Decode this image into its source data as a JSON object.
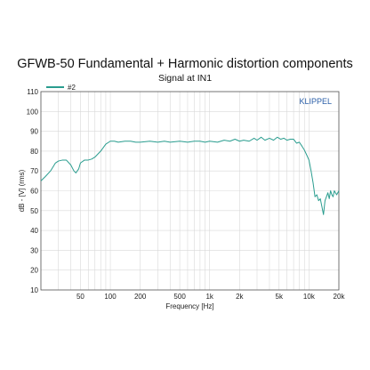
{
  "chart_data": {
    "type": "line",
    "title": "GFWB-50 Fundamental + Harmonic distortion components",
    "subtitle": "Signal at IN1",
    "xlabel": "Frequency [Hz]",
    "ylabel": "dB - [V] (rms)",
    "xscale": "log",
    "xlim": [
      20,
      20000
    ],
    "ylim": [
      10,
      110
    ],
    "grid": true,
    "legend_position": "top-left",
    "watermark": "KLIPPEL",
    "x_ticks": [
      50,
      100,
      200,
      500,
      1000,
      2000,
      5000,
      10000,
      20000
    ],
    "x_tick_labels": [
      "50",
      "100",
      "200",
      "500",
      "1k",
      "2k",
      "5k",
      "10k",
      "20k"
    ],
    "y_ticks": [
      10,
      20,
      30,
      40,
      50,
      60,
      70,
      80,
      90,
      100,
      110
    ],
    "y_tick_labels": [
      "10",
      "20",
      "30",
      "40",
      "50",
      "60",
      "70",
      "80",
      "90",
      "100",
      "110"
    ],
    "series": [
      {
        "name": "#2",
        "color": "#2a9d8f",
        "x": [
          20,
          22,
          25,
          28,
          30,
          33,
          36,
          40,
          43,
          45,
          48,
          50,
          55,
          60,
          65,
          70,
          80,
          90,
          100,
          110,
          120,
          140,
          160,
          180,
          200,
          250,
          300,
          350,
          400,
          500,
          600,
          700,
          800,
          900,
          1000,
          1200,
          1400,
          1600,
          1800,
          2000,
          2200,
          2500,
          2800,
          3000,
          3300,
          3600,
          4000,
          4400,
          4800,
          5200,
          5600,
          6000,
          6500,
          7000,
          7500,
          8000,
          8500,
          9000,
          9500,
          10000,
          10500,
          11000,
          11500,
          12000,
          12500,
          13000,
          13500,
          14000,
          14500,
          15000,
          15500,
          16000,
          16500,
          17000,
          17500,
          18000,
          18500,
          19000,
          20000
        ],
        "y": [
          65,
          67,
          70,
          74,
          75,
          75.5,
          75.5,
          73,
          70,
          69,
          71,
          74,
          75.5,
          75.5,
          76,
          77,
          80,
          83.5,
          85,
          85,
          84.5,
          85,
          85,
          84.5,
          84.5,
          85,
          84.5,
          85,
          84.5,
          85,
          84.5,
          85,
          85,
          84.5,
          85,
          84.5,
          85.5,
          85,
          86,
          85,
          85.5,
          85,
          86.5,
          85.5,
          87,
          85.5,
          86.5,
          85.5,
          87,
          86,
          86.5,
          85.5,
          86,
          86,
          84,
          84.5,
          82.5,
          80.5,
          78,
          75.5,
          70,
          64,
          57,
          58,
          55,
          56,
          52,
          48,
          55,
          57,
          59,
          56,
          60,
          58,
          57,
          60,
          59,
          58,
          60
        ]
      }
    ]
  }
}
